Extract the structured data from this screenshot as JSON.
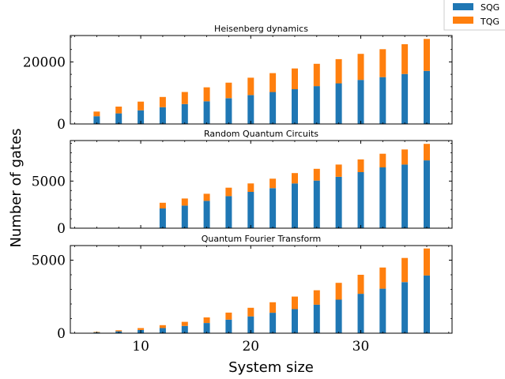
{
  "figure": {
    "ylabel": "Number of gates",
    "xlabel": "System size"
  },
  "legend": {
    "placement": "top-right",
    "items": [
      {
        "label": "SQG",
        "color": "#1f77b4"
      },
      {
        "label": "TQG",
        "color": "#ff7f0e"
      }
    ]
  },
  "chart_data": [
    {
      "type": "bar",
      "stacked": true,
      "title": "Heisenberg dynamics",
      "x": [
        6,
        8,
        10,
        12,
        14,
        16,
        18,
        20,
        22,
        24,
        26,
        28,
        30,
        32,
        34,
        36
      ],
      "xlim": [
        3.6,
        38.3
      ],
      "xticks": [
        10,
        20,
        30
      ],
      "ylim": [
        0,
        28500
      ],
      "yticks": [
        0,
        20000
      ],
      "series": [
        {
          "name": "SQG",
          "values": [
            2500,
            3400,
            4400,
            5400,
            6400,
            7300,
            8300,
            9300,
            10300,
            11200,
            12200,
            13100,
            14200,
            15100,
            16100,
            17100
          ]
        },
        {
          "name": "TQG",
          "values": [
            1500,
            2200,
            2800,
            3300,
            3900,
            4500,
            5000,
            5600,
            6100,
            6700,
            7200,
            7800,
            8400,
            9000,
            9600,
            10300
          ]
        }
      ]
    },
    {
      "type": "bar",
      "stacked": true,
      "title": "Random Quantum Circuits",
      "x": [
        12,
        14,
        16,
        18,
        20,
        22,
        24,
        26,
        28,
        30,
        32,
        34,
        36
      ],
      "xlim": [
        3.6,
        38.3
      ],
      "xticks": [
        10,
        20,
        30
      ],
      "ylim": [
        0,
        9300
      ],
      "yticks": [
        0,
        5000
      ],
      "series": [
        {
          "name": "SQG",
          "values": [
            2100,
            2400,
            2900,
            3400,
            3850,
            4250,
            4750,
            5050,
            5450,
            5950,
            6450,
            6750,
            7200
          ]
        },
        {
          "name": "TQG",
          "values": [
            600,
            750,
            750,
            900,
            900,
            1000,
            1100,
            1250,
            1300,
            1350,
            1450,
            1600,
            1750
          ]
        }
      ]
    },
    {
      "type": "bar",
      "stacked": true,
      "title": "Quantum Fourier Transform",
      "x": [
        6,
        8,
        10,
        12,
        14,
        16,
        18,
        20,
        22,
        24,
        26,
        28,
        30,
        32,
        34,
        36
      ],
      "xlim": [
        3.6,
        38.3
      ],
      "xticks": [
        10,
        20,
        30
      ],
      "ylim": [
        0,
        6000
      ],
      "yticks": [
        0,
        5000
      ],
      "series": [
        {
          "name": "SQG",
          "values": [
            60,
            130,
            220,
            350,
            500,
            700,
            930,
            1150,
            1400,
            1650,
            1950,
            2300,
            2700,
            3050,
            3500,
            3950
          ]
        },
        {
          "name": "TQG",
          "values": [
            30,
            70,
            130,
            200,
            280,
            380,
            480,
            590,
            720,
            860,
            990,
            1150,
            1300,
            1450,
            1650,
            1850
          ]
        }
      ]
    }
  ]
}
